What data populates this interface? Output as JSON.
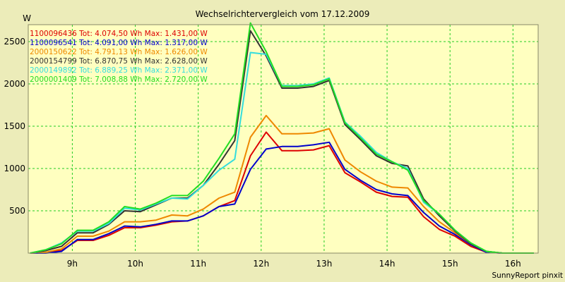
{
  "chart_data": {
    "type": "line",
    "title": "Wechselrichtervergleich vom 17.12.2009",
    "ylabel": "W",
    "xlabel": "",
    "footer": "SunnyReport pinxit",
    "grid": true,
    "xlim": [
      8.3,
      16.4
    ],
    "ylim": [
      0,
      2700
    ],
    "xticks": [
      {
        "value": 9,
        "label": "9h"
      },
      {
        "value": 10,
        "label": "10h"
      },
      {
        "value": 11,
        "label": "11h"
      },
      {
        "value": 12,
        "label": "12h"
      },
      {
        "value": 13,
        "label": "13h"
      },
      {
        "value": 14,
        "label": "14h"
      },
      {
        "value": 15,
        "label": "15h"
      },
      {
        "value": 16,
        "label": "16h"
      }
    ],
    "yticks": [
      {
        "value": 500,
        "label": "500"
      },
      {
        "value": 1000,
        "label": "1000"
      },
      {
        "value": 1500,
        "label": "1500"
      },
      {
        "value": 2000,
        "label": "2000"
      },
      {
        "value": 2500,
        "label": "2500"
      }
    ],
    "x": [
      8.33,
      8.58,
      8.83,
      9.08,
      9.33,
      9.58,
      9.83,
      10.08,
      10.33,
      10.58,
      10.83,
      11.08,
      11.33,
      11.58,
      11.83,
      12.08,
      12.33,
      12.58,
      12.83,
      13.08,
      13.33,
      13.58,
      13.83,
      14.08,
      14.33,
      14.58,
      14.83,
      15.08,
      15.33,
      15.58,
      15.83,
      16.08,
      16.33
    ],
    "series": [
      {
        "name": "1100096436",
        "legend": "1100096436 Tot: 4.074,50 Wh Max: 1.431,00 W",
        "color": "#dd0000",
        "values": [
          0,
          10,
          30,
          150,
          150,
          210,
          300,
          300,
          330,
          370,
          380,
          440,
          550,
          620,
          1150,
          1430,
          1210,
          1210,
          1220,
          1270,
          950,
          840,
          720,
          670,
          660,
          430,
          280,
          200,
          80,
          10,
          0,
          0,
          0
        ]
      },
      {
        "name": "1100096541",
        "legend": "1100096541 Tot: 4.091,00 Wh Max: 1.317,00 W",
        "color": "#0000cc",
        "values": [
          0,
          0,
          20,
          160,
          160,
          230,
          320,
          310,
          340,
          380,
          380,
          440,
          550,
          580,
          990,
          1230,
          1260,
          1260,
          1280,
          1310,
          990,
          860,
          750,
          700,
          680,
          480,
          320,
          220,
          100,
          10,
          0,
          0,
          0
        ]
      },
      {
        "name": "2000150622",
        "legend": "2000150622 Tot: 4.791,13 Wh Max: 1.626,00 W",
        "color": "#ee8800",
        "values": [
          0,
          10,
          50,
          200,
          200,
          260,
          370,
          370,
          390,
          450,
          440,
          520,
          650,
          720,
          1370,
          1626,
          1410,
          1410,
          1420,
          1470,
          1100,
          960,
          850,
          780,
          770,
          550,
          370,
          240,
          110,
          20,
          0,
          0,
          0
        ]
      },
      {
        "name": "2000154799",
        "legend": "2000154799 Tot: 6.870,75 Wh Max: 2.628,00 W",
        "color": "#333333",
        "values": [
          0,
          30,
          80,
          240,
          240,
          340,
          500,
          490,
          570,
          650,
          650,
          800,
          1050,
          1330,
          2628,
          2330,
          1950,
          1950,
          1970,
          2040,
          1520,
          1340,
          1150,
          1060,
          1030,
          640,
          440,
          260,
          110,
          20,
          0,
          0,
          0
        ]
      },
      {
        "name": "2000149892",
        "legend": "2000149892 Tot: 6.889,25 Wh Max: 2.371,00 W",
        "color": "#33dddd",
        "values": [
          0,
          40,
          120,
          260,
          260,
          350,
          530,
          510,
          580,
          650,
          640,
          800,
          980,
          1110,
          2371,
          2350,
          1980,
          1980,
          2000,
          2070,
          1550,
          1380,
          1190,
          1080,
          1000,
          600,
          460,
          270,
          120,
          20,
          0,
          0,
          0
        ]
      },
      {
        "name": "2000001409",
        "legend": "2000001409 Tot: 7.008,88 Wh Max: 2.720,00 W",
        "color": "#22dd22",
        "values": [
          0,
          40,
          110,
          270,
          270,
          370,
          550,
          520,
          590,
          680,
          680,
          850,
          1120,
          1410,
          2720,
          2380,
          1970,
          1970,
          1990,
          2060,
          1540,
          1360,
          1170,
          1080,
          980,
          620,
          460,
          270,
          120,
          20,
          0,
          0,
          0
        ]
      }
    ]
  }
}
